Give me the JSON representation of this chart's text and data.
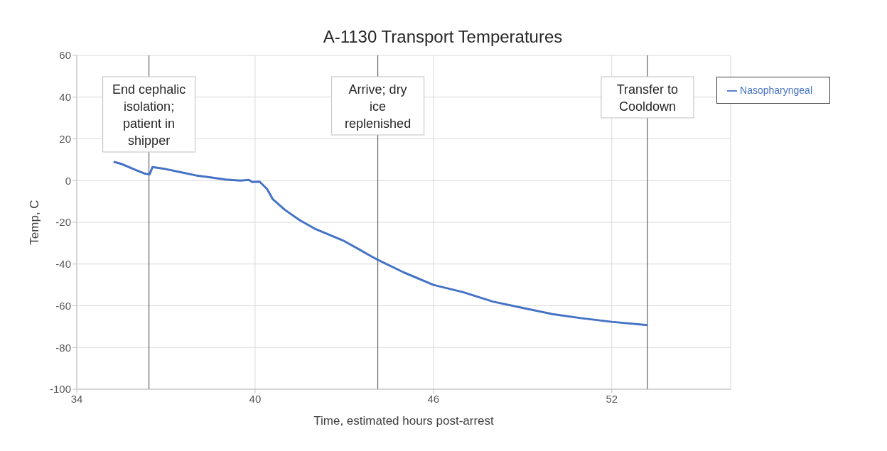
{
  "chart_data": {
    "type": "line",
    "title": "A-1130 Transport Temperatures",
    "xlabel": "Time, estimated hours post-arrest",
    "ylabel": "Temp, C",
    "series": [
      {
        "name": "Nasopharyngeal",
        "color": "#4472c4",
        "x": [
          35.24,
          35.5,
          36.0,
          36.3,
          36.45,
          36.55,
          37,
          37.5,
          38,
          38.5,
          39,
          39.5,
          39.8,
          39.9,
          40.15,
          40.4,
          40.6,
          41,
          41.5,
          42,
          43,
          44,
          44.13,
          45,
          46,
          47,
          48,
          49,
          50,
          51,
          52,
          53.2
        ],
        "values": [
          9,
          8,
          5,
          3.3,
          3,
          6.5,
          5.5,
          4,
          2.5,
          1.5,
          0.5,
          0,
          0.3,
          -0.7,
          -0.5,
          -4,
          -9,
          -14,
          -19,
          -23,
          -29,
          -37,
          -38,
          -44,
          -50,
          -53.5,
          -58,
          -61,
          -64,
          -66,
          -67.7,
          -69.3
        ]
      }
    ],
    "xlim": [
      34,
      56
    ],
    "xticks": [
      34,
      40,
      46,
      52
    ],
    "ylim": [
      -100,
      60
    ],
    "yticks": [
      -100,
      -80,
      -60,
      -40,
      -20,
      0,
      20,
      40,
      60
    ],
    "grid": true,
    "legend": "top right",
    "marker": "none",
    "line_style": "solid",
    "ref_lines": [
      {
        "axis": "x",
        "value": 36.43,
        "label": "End cephalic isolation; patient in shipper",
        "color": "#404040"
      },
      {
        "axis": "x",
        "value": 44.13,
        "label": "Arrive; dry ice replenished",
        "color": "#404040"
      },
      {
        "axis": "x",
        "value": 53.2,
        "label": "Transfer to Cooldown",
        "color": "#404040"
      }
    ]
  }
}
